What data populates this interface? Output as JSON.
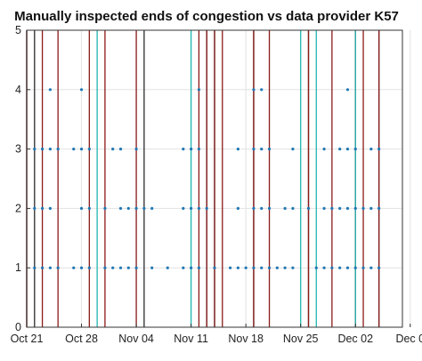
{
  "chart_data": {
    "type": "scatter",
    "title": "Manually inspected ends of congestion vs data provider K57",
    "xlabel": "",
    "ylabel": "",
    "x_ticks": [
      "Oct 21",
      "Oct 28",
      "Nov 04",
      "Nov 11",
      "Nov 18",
      "Nov 25",
      "Dec 02",
      "Dec 0"
    ],
    "y_ticks": [
      "0",
      "1",
      "2",
      "3",
      "4",
      "5"
    ],
    "xlim": [
      "2019-10-21",
      "2019-12-08"
    ],
    "ylim": [
      0,
      5
    ],
    "grid": true,
    "legend": "none",
    "colors": {
      "points": "#1f77b4",
      "line_dark": "#2a2a2a",
      "line_red": "#8b1a1a",
      "line_cyan": "#22b6b0",
      "grid": "#e2e2e2",
      "axes": "#333333"
    },
    "series": [
      {
        "style": "points",
        "values": [
          {
            "x": "2019-10-22",
            "y": 1
          },
          {
            "x": "2019-10-22",
            "y": 2
          },
          {
            "x": "2019-10-22",
            "y": 3
          },
          {
            "x": "2019-10-23",
            "y": 1
          },
          {
            "x": "2019-10-23",
            "y": 2
          },
          {
            "x": "2019-10-23",
            "y": 3
          },
          {
            "x": "2019-10-24",
            "y": 1
          },
          {
            "x": "2019-10-24",
            "y": 2
          },
          {
            "x": "2019-10-24",
            "y": 3
          },
          {
            "x": "2019-10-24",
            "y": 4
          },
          {
            "x": "2019-10-25",
            "y": 1
          },
          {
            "x": "2019-10-25",
            "y": 3
          },
          {
            "x": "2019-10-27",
            "y": 1
          },
          {
            "x": "2019-10-27",
            "y": 3
          },
          {
            "x": "2019-10-28",
            "y": 1
          },
          {
            "x": "2019-10-28",
            "y": 2
          },
          {
            "x": "2019-10-28",
            "y": 3
          },
          {
            "x": "2019-10-28",
            "y": 4
          },
          {
            "x": "2019-10-29",
            "y": 1
          },
          {
            "x": "2019-10-29",
            "y": 2
          },
          {
            "x": "2019-10-29",
            "y": 3
          },
          {
            "x": "2019-10-31",
            "y": 1
          },
          {
            "x": "2019-10-31",
            "y": 2
          },
          {
            "x": "2019-11-01",
            "y": 1
          },
          {
            "x": "2019-11-01",
            "y": 3
          },
          {
            "x": "2019-11-02",
            "y": 1
          },
          {
            "x": "2019-11-02",
            "y": 2
          },
          {
            "x": "2019-11-02",
            "y": 3
          },
          {
            "x": "2019-11-03",
            "y": 1
          },
          {
            "x": "2019-11-03",
            "y": 2
          },
          {
            "x": "2019-11-04",
            "y": 1
          },
          {
            "x": "2019-11-04",
            "y": 2
          },
          {
            "x": "2019-11-04",
            "y": 3
          },
          {
            "x": "2019-11-05",
            "y": 2
          },
          {
            "x": "2019-11-06",
            "y": 1
          },
          {
            "x": "2019-11-06",
            "y": 2
          },
          {
            "x": "2019-11-08",
            "y": 1
          },
          {
            "x": "2019-11-10",
            "y": 1
          },
          {
            "x": "2019-11-10",
            "y": 2
          },
          {
            "x": "2019-11-10",
            "y": 3
          },
          {
            "x": "2019-11-11",
            "y": 1
          },
          {
            "x": "2019-11-11",
            "y": 2
          },
          {
            "x": "2019-11-11",
            "y": 3
          },
          {
            "x": "2019-11-12",
            "y": 1
          },
          {
            "x": "2019-11-12",
            "y": 2
          },
          {
            "x": "2019-11-12",
            "y": 3
          },
          {
            "x": "2019-11-12",
            "y": 4
          },
          {
            "x": "2019-11-13",
            "y": 2
          },
          {
            "x": "2019-11-14",
            "y": 1
          },
          {
            "x": "2019-11-16",
            "y": 1
          },
          {
            "x": "2019-11-17",
            "y": 1
          },
          {
            "x": "2019-11-17",
            "y": 2
          },
          {
            "x": "2019-11-17",
            "y": 3
          },
          {
            "x": "2019-11-18",
            "y": 1
          },
          {
            "x": "2019-11-19",
            "y": 1
          },
          {
            "x": "2019-11-19",
            "y": 2
          },
          {
            "x": "2019-11-19",
            "y": 3
          },
          {
            "x": "2019-11-19",
            "y": 4
          },
          {
            "x": "2019-11-20",
            "y": 1
          },
          {
            "x": "2019-11-20",
            "y": 2
          },
          {
            "x": "2019-11-20",
            "y": 3
          },
          {
            "x": "2019-11-20",
            "y": 4
          },
          {
            "x": "2019-11-21",
            "y": 1
          },
          {
            "x": "2019-11-21",
            "y": 2
          },
          {
            "x": "2019-11-21",
            "y": 3
          },
          {
            "x": "2019-11-22",
            "y": 1
          },
          {
            "x": "2019-11-23",
            "y": 1
          },
          {
            "x": "2019-11-23",
            "y": 2
          },
          {
            "x": "2019-11-24",
            "y": 1
          },
          {
            "x": "2019-11-24",
            "y": 2
          },
          {
            "x": "2019-11-24",
            "y": 3
          },
          {
            "x": "2019-11-26",
            "y": 2
          },
          {
            "x": "2019-11-27",
            "y": 1
          },
          {
            "x": "2019-11-28",
            "y": 1
          },
          {
            "x": "2019-11-28",
            "y": 2
          },
          {
            "x": "2019-11-28",
            "y": 3
          },
          {
            "x": "2019-11-29",
            "y": 1
          },
          {
            "x": "2019-11-29",
            "y": 2
          },
          {
            "x": "2019-11-30",
            "y": 1
          },
          {
            "x": "2019-11-30",
            "y": 2
          },
          {
            "x": "2019-11-30",
            "y": 3
          },
          {
            "x": "2019-12-01",
            "y": 1
          },
          {
            "x": "2019-12-01",
            "y": 2
          },
          {
            "x": "2019-12-01",
            "y": 3
          },
          {
            "x": "2019-12-01",
            "y": 4
          },
          {
            "x": "2019-12-02",
            "y": 1
          },
          {
            "x": "2019-12-02",
            "y": 2
          },
          {
            "x": "2019-12-02",
            "y": 3
          },
          {
            "x": "2019-12-03",
            "y": 1
          },
          {
            "x": "2019-12-03",
            "y": 2
          },
          {
            "x": "2019-12-04",
            "y": 1
          },
          {
            "x": "2019-12-04",
            "y": 2
          },
          {
            "x": "2019-12-04",
            "y": 3
          },
          {
            "x": "2019-12-05",
            "y": 1
          },
          {
            "x": "2019-12-05",
            "y": 2
          },
          {
            "x": "2019-12-05",
            "y": 3
          }
        ]
      },
      {
        "style": "vertical-lines",
        "color": "dark",
        "x": [
          "2019-10-21",
          "2019-10-22",
          "2019-11-05",
          "2019-11-13",
          "2019-11-14",
          "2019-11-19",
          "2019-11-26",
          "2019-12-05"
        ]
      },
      {
        "style": "vertical-lines",
        "color": "red",
        "x": [
          "2019-10-21",
          "2019-10-23",
          "2019-10-25",
          "2019-10-29",
          "2019-10-31",
          "2019-11-04",
          "2019-11-12",
          "2019-11-13",
          "2019-11-14",
          "2019-11-15",
          "2019-11-19",
          "2019-11-21",
          "2019-11-26",
          "2019-11-29",
          "2019-12-02",
          "2019-12-03",
          "2019-12-05"
        ]
      },
      {
        "style": "vertical-lines",
        "color": "cyan",
        "x": [
          "2019-10-30",
          "2019-11-11",
          "2019-11-25",
          "2019-11-27",
          "2019-12-02"
        ]
      }
    ]
  }
}
